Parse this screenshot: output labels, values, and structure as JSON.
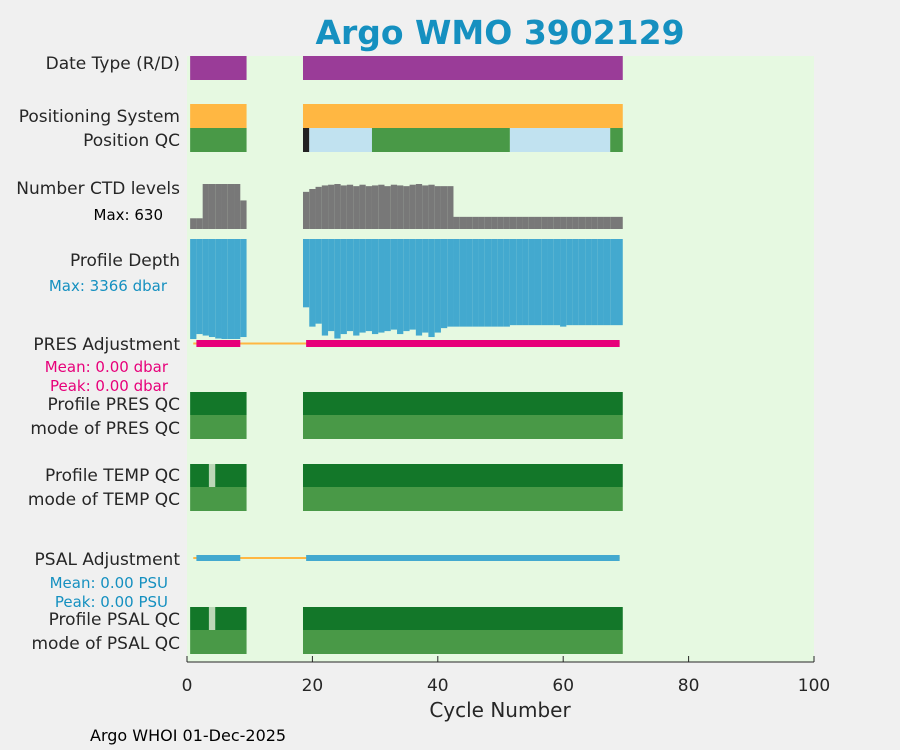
{
  "chart_data": {
    "type": "table",
    "title": "Argo WMO 3902129",
    "xlabel": "Cycle Number",
    "xlim": [
      0,
      100
    ],
    "xticks": [
      0,
      20,
      40,
      60,
      80,
      100
    ],
    "footer": "Argo WHOI 01-Dec-2025",
    "colors": {
      "background": "#e6f9e1",
      "delayed": "#9a3c98",
      "gps": "#ffb742",
      "qc_good": "#499947",
      "qc_dark": "#137729",
      "qc_black": "#222222",
      "qc_lightblue": "#c1e2f0",
      "ctd": "#787878",
      "depth": "#43a9cf",
      "pres_adj": "#e7007a",
      "psal_adj": "#43a9cf",
      "thin_line": "#ffb742",
      "gap": "#bcd7b7"
    },
    "rows": [
      {
        "key": "date_type",
        "label": "Date Type (R/D)",
        "segments": [
          [
            0.5,
            9.5,
            "delayed"
          ],
          [
            18.5,
            69.5,
            "delayed"
          ]
        ]
      },
      {
        "key": "positioning",
        "label": "Positioning System",
        "segments": [
          [
            0.5,
            9.5,
            "gps"
          ],
          [
            18.5,
            69.5,
            "gps"
          ]
        ]
      },
      {
        "key": "position_qc",
        "label": "Position QC",
        "segments": [
          [
            0.5,
            9.5,
            "qc_good"
          ],
          [
            18.5,
            19.5,
            "qc_black"
          ],
          [
            19.5,
            29.5,
            "qc_lightblue"
          ],
          [
            29.5,
            51.5,
            "qc_good"
          ],
          [
            51.5,
            67.5,
            "qc_lightblue"
          ],
          [
            67.5,
            69.5,
            "qc_good"
          ]
        ]
      },
      {
        "key": "ctd_levels",
        "label": "Number CTD levels",
        "note": "Max: 630",
        "max": 630,
        "cycles": [
          1,
          2,
          3,
          4,
          5,
          6,
          7,
          8,
          9,
          19,
          20,
          21,
          22,
          23,
          24,
          25,
          26,
          27,
          28,
          29,
          30,
          31,
          32,
          33,
          34,
          35,
          36,
          37,
          38,
          39,
          40,
          41,
          42,
          43,
          44,
          45,
          46,
          47,
          48,
          49,
          50,
          51,
          52,
          53,
          54,
          55,
          56,
          57,
          58,
          59,
          60,
          61,
          62,
          63,
          64,
          65,
          66,
          67,
          68,
          69
        ],
        "values": [
          150,
          150,
          630,
          630,
          630,
          630,
          630,
          630,
          400,
          520,
          560,
          590,
          610,
          620,
          630,
          610,
          620,
          600,
          620,
          600,
          610,
          620,
          600,
          620,
          610,
          600,
          620,
          630,
          610,
          620,
          600,
          600,
          600,
          170,
          170,
          170,
          170,
          170,
          170,
          170,
          170,
          170,
          170,
          170,
          170,
          170,
          170,
          170,
          170,
          170,
          170,
          170,
          170,
          170,
          170,
          170,
          170,
          170,
          170,
          170
        ]
      },
      {
        "key": "profile_depth",
        "label": "Profile Depth",
        "note": "Max: 3366 dbar",
        "max": 3366,
        "cycles": [
          1,
          2,
          3,
          4,
          5,
          6,
          7,
          8,
          9,
          19,
          20,
          21,
          22,
          23,
          24,
          25,
          26,
          27,
          28,
          29,
          30,
          31,
          32,
          33,
          34,
          35,
          36,
          37,
          38,
          39,
          40,
          41,
          42,
          43,
          44,
          45,
          46,
          47,
          48,
          49,
          50,
          51,
          52,
          53,
          54,
          55,
          56,
          57,
          58,
          59,
          60,
          61,
          62,
          63,
          64,
          65,
          66,
          67,
          68,
          69
        ],
        "values": [
          3366,
          3200,
          3250,
          3300,
          3350,
          3366,
          3366,
          3366,
          3300,
          2300,
          2950,
          2850,
          3250,
          3100,
          3350,
          3200,
          3100,
          3250,
          3150,
          3100,
          3200,
          3150,
          3100,
          3050,
          3200,
          3100,
          3050,
          3250,
          3150,
          3300,
          3150,
          3000,
          2950,
          2950,
          2950,
          2950,
          2950,
          2950,
          2950,
          2950,
          2950,
          2950,
          2900,
          2900,
          2900,
          2900,
          2900,
          2900,
          2900,
          2900,
          2950,
          2900,
          2900,
          2900,
          2900,
          2900,
          2900,
          2900,
          2900,
          2900
        ]
      },
      {
        "key": "pres_adjustment",
        "label": "PRES Adjustment",
        "mean": "Mean: 0.00 dbar",
        "peak": "Peak: 0.00 dbar",
        "segments": [
          [
            1.5,
            8.5,
            "pres_adj"
          ],
          [
            19,
            69,
            "pres_adj"
          ]
        ],
        "line": [
          1,
          69
        ]
      },
      {
        "key": "profile_pres_qc",
        "label": "Profile PRES QC",
        "segments": [
          [
            0.5,
            9.5,
            "qc_dark"
          ],
          [
            18.5,
            69.5,
            "qc_dark"
          ]
        ]
      },
      {
        "key": "mode_pres_qc",
        "label": "mode of PRES QC",
        "segments": [
          [
            0.5,
            9.5,
            "qc_good"
          ],
          [
            18.5,
            69.5,
            "qc_good"
          ]
        ]
      },
      {
        "key": "profile_temp_qc",
        "label": "Profile TEMP QC",
        "segments": [
          [
            0.5,
            3.5,
            "qc_dark"
          ],
          [
            3.5,
            4.5,
            "gap"
          ],
          [
            4.5,
            9.5,
            "qc_dark"
          ],
          [
            18.5,
            69.5,
            "qc_dark"
          ]
        ]
      },
      {
        "key": "mode_temp_qc",
        "label": "mode of TEMP QC",
        "segments": [
          [
            0.5,
            9.5,
            "qc_good"
          ],
          [
            18.5,
            69.5,
            "qc_good"
          ]
        ]
      },
      {
        "key": "psal_adjustment",
        "label": "PSAL Adjustment",
        "mean": "Mean: 0.00 PSU",
        "peak": "Peak: 0.00 PSU",
        "segments": [
          [
            1.5,
            8.5,
            "psal_adj"
          ],
          [
            19,
            69,
            "psal_adj"
          ]
        ],
        "line": [
          1,
          69
        ]
      },
      {
        "key": "profile_psal_qc",
        "label": "Profile PSAL QC",
        "segments": [
          [
            0.5,
            3.5,
            "qc_dark"
          ],
          [
            3.5,
            4.5,
            "gap"
          ],
          [
            4.5,
            9.5,
            "qc_dark"
          ],
          [
            18.5,
            69.5,
            "qc_dark"
          ]
        ]
      },
      {
        "key": "mode_psal_qc",
        "label": "mode of PSAL QC",
        "segments": [
          [
            0.5,
            9.5,
            "qc_good"
          ],
          [
            18.5,
            69.5,
            "qc_good"
          ]
        ]
      }
    ]
  }
}
